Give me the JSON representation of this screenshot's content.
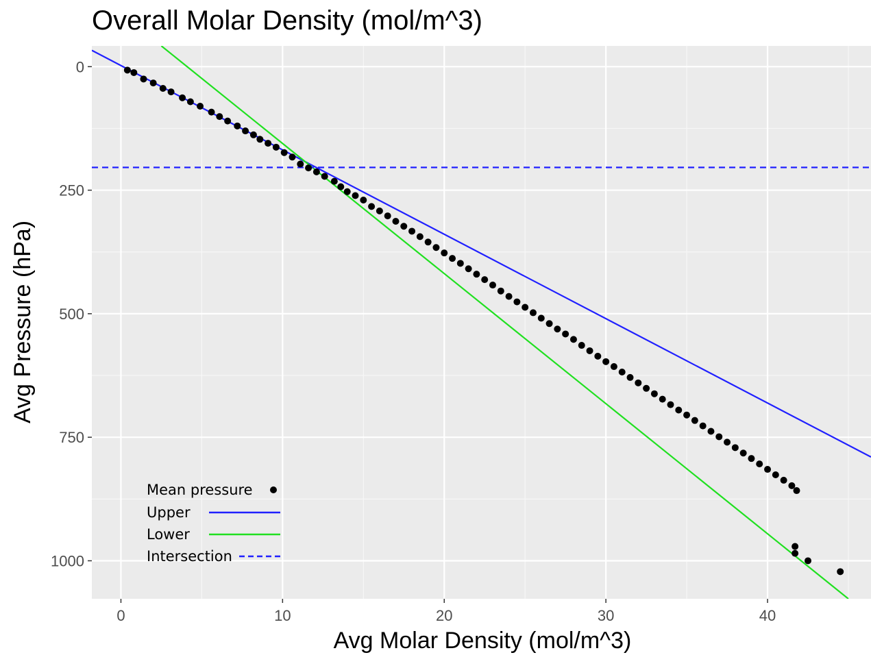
{
  "chart_data": {
    "type": "scatter",
    "title": "Overall Molar Density (mol/m^3)",
    "xlabel": "Avg Molar Density (mol/m^3)",
    "ylabel": "Avg Pressure (hPa)",
    "xlim": [
      -1.8,
      46.4
    ],
    "ylim": [
      -42,
      1077
    ],
    "y_reversed": true,
    "grid": true,
    "x_ticks": [
      0,
      10,
      20,
      30,
      40
    ],
    "y_ticks": [
      0,
      250,
      500,
      750,
      1000
    ],
    "legend_position": "bottom-left",
    "series": [
      {
        "name": "Mean pressure",
        "kind": "points",
        "color": "#000000",
        "points": [
          [
            0.4,
            7
          ],
          [
            0.8,
            12
          ],
          [
            1.4,
            25
          ],
          [
            2.0,
            33
          ],
          [
            2.6,
            44
          ],
          [
            3.1,
            51
          ],
          [
            3.8,
            63
          ],
          [
            4.3,
            71
          ],
          [
            4.9,
            80
          ],
          [
            5.6,
            92
          ],
          [
            6.1,
            101
          ],
          [
            6.6,
            110
          ],
          [
            7.2,
            120
          ],
          [
            7.7,
            130
          ],
          [
            8.2,
            138
          ],
          [
            8.6,
            147
          ],
          [
            9.1,
            155
          ],
          [
            9.6,
            163
          ],
          [
            10.1,
            174
          ],
          [
            10.6,
            183
          ],
          [
            11.1,
            197
          ],
          [
            11.6,
            205
          ],
          [
            12.1,
            213
          ],
          [
            12.6,
            222
          ],
          [
            13.2,
            232
          ],
          [
            13.6,
            243
          ],
          [
            14.0,
            253
          ],
          [
            14.5,
            261
          ],
          [
            15.0,
            270
          ],
          [
            15.5,
            283
          ],
          [
            16.0,
            292
          ],
          [
            16.5,
            302
          ],
          [
            17.0,
            313
          ],
          [
            17.5,
            323
          ],
          [
            18.0,
            333
          ],
          [
            18.5,
            344
          ],
          [
            19.0,
            355
          ],
          [
            19.5,
            366
          ],
          [
            20.0,
            377
          ],
          [
            20.5,
            388
          ],
          [
            21.0,
            398
          ],
          [
            21.5,
            409
          ],
          [
            22.0,
            420
          ],
          [
            22.5,
            431
          ],
          [
            23.0,
            442
          ],
          [
            23.5,
            454
          ],
          [
            24.0,
            465
          ],
          [
            24.5,
            476
          ],
          [
            25.0,
            487
          ],
          [
            25.5,
            498
          ],
          [
            26.0,
            509
          ],
          [
            26.5,
            520
          ],
          [
            27.0,
            531
          ],
          [
            27.5,
            541
          ],
          [
            28.0,
            552
          ],
          [
            28.5,
            564
          ],
          [
            29.0,
            575
          ],
          [
            29.5,
            586
          ],
          [
            30.0,
            597
          ],
          [
            30.5,
            607
          ],
          [
            31.0,
            618
          ],
          [
            31.5,
            629
          ],
          [
            32.0,
            640
          ],
          [
            32.5,
            651
          ],
          [
            33.0,
            662
          ],
          [
            33.5,
            673
          ],
          [
            34.0,
            684
          ],
          [
            34.5,
            695
          ],
          [
            35.0,
            705
          ],
          [
            35.5,
            716
          ],
          [
            36.0,
            727
          ],
          [
            36.5,
            738
          ],
          [
            37.0,
            749
          ],
          [
            37.5,
            760
          ],
          [
            38.0,
            771
          ],
          [
            38.5,
            782
          ],
          [
            39.0,
            793
          ],
          [
            39.5,
            804
          ],
          [
            40.0,
            815
          ],
          [
            40.5,
            826
          ],
          [
            41.0,
            837
          ],
          [
            41.5,
            848
          ],
          [
            41.8,
            858
          ],
          [
            41.7,
            971
          ],
          [
            41.7,
            985
          ],
          [
            42.5,
            1000
          ],
          [
            44.5,
            1022
          ]
        ]
      },
      {
        "name": "Upper",
        "kind": "line",
        "color": "#2020ff",
        "from": [
          -1.8,
          -33
        ],
        "to": [
          46.4,
          790
        ]
      },
      {
        "name": "Lower",
        "kind": "line",
        "color": "#20e020",
        "from": [
          2.5,
          -42
        ],
        "to": [
          45.0,
          1077
        ]
      },
      {
        "name": "Intersection",
        "kind": "hline",
        "color": "#2020ff",
        "dashed": true,
        "y": 204
      }
    ]
  }
}
